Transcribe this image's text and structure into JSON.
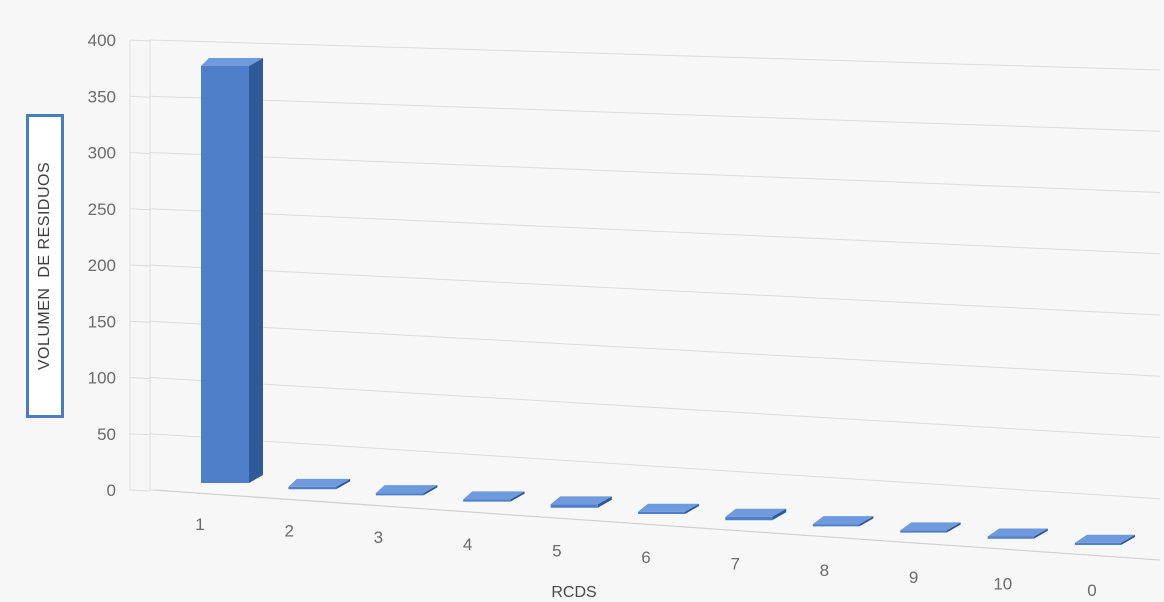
{
  "chart_data": {
    "type": "bar",
    "style": "3d-column",
    "categories": [
      "1",
      "2",
      "3",
      "4",
      "5",
      "6",
      "7",
      "8",
      "9",
      "10",
      "0"
    ],
    "values": [
      365,
      2,
      2,
      2,
      3,
      2,
      3,
      2,
      2,
      2,
      2
    ],
    "xlabel": "RCDS",
    "ylabel": "VOLUMEN  DE RESIDUOS",
    "ylim": [
      0,
      400
    ],
    "yticks": [
      0,
      50,
      100,
      150,
      200,
      250,
      300,
      350,
      400
    ],
    "grid": true,
    "legend": "none",
    "colors": {
      "bar_front": "#4f7fc8",
      "bar_side": "#2f5a9a",
      "bar_top": "#6f9ade",
      "grid": "#dcdcdc",
      "highlight_box": "#4a7cc0"
    }
  }
}
